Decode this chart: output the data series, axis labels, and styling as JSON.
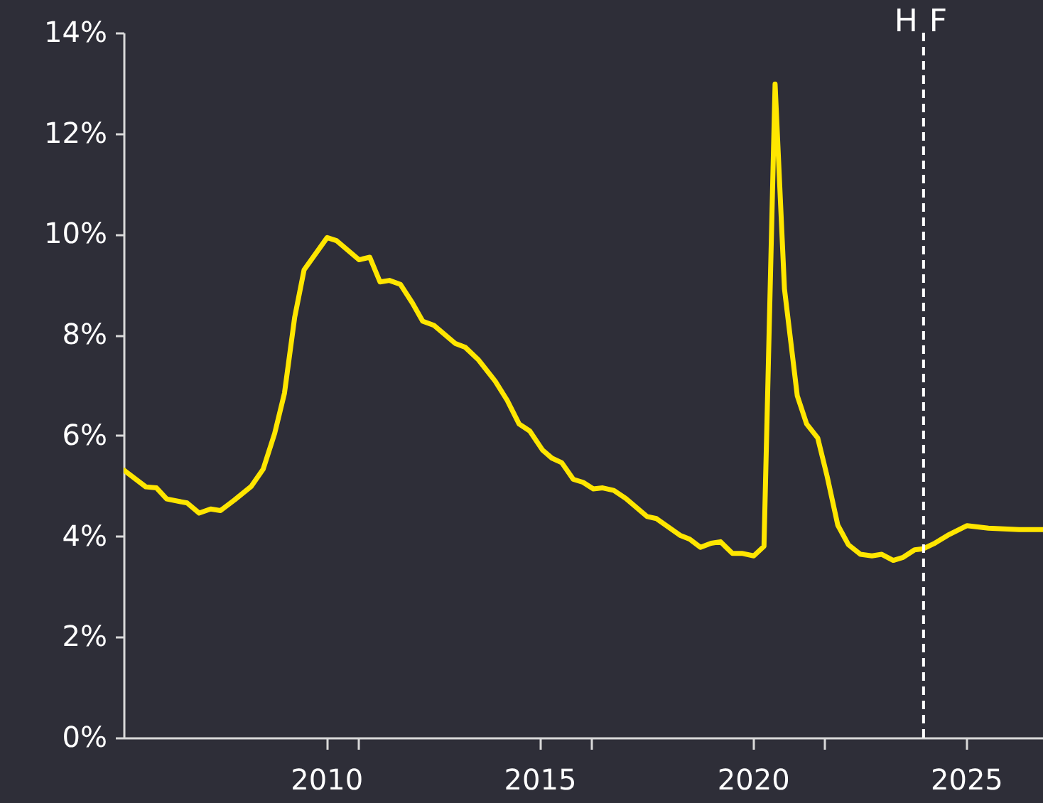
{
  "chart_data": {
    "type": "line",
    "x": [
      2005.26,
      2005.77,
      2006.02,
      2006.26,
      2006.74,
      2007.02,
      2007.29,
      2007.52,
      2007.85,
      2008.24,
      2008.52,
      2008.79,
      2009.02,
      2009.26,
      2009.48,
      2010.02,
      2010.24,
      2010.77,
      2011.02,
      2011.26,
      2011.48,
      2011.74,
      2012.02,
      2012.26,
      2012.52,
      2013.02,
      2013.26,
      2013.57,
      2013.96,
      2014.24,
      2014.52,
      2014.77,
      2015.07,
      2015.29,
      2015.52,
      2015.79,
      2016.02,
      2016.26,
      2016.48,
      2016.74,
      2017.02,
      2017.52,
      2017.74,
      2018.29,
      2018.52,
      2018.77,
      2019.02,
      2019.24,
      2019.52,
      2019.74,
      2020.02,
      2020.26,
      2020.52,
      2020.74,
      2021.04,
      2021.26,
      2021.52,
      2021.74,
      2021.99,
      2022.24,
      2022.52,
      2022.79,
      2023.02,
      2023.29,
      2023.52,
      2023.79,
      2023.99,
      2024.24,
      2024.57,
      2025.02,
      2025.52,
      2026.24,
      2026.8
    ],
    "series": [
      {
        "color": "#ffe600",
        "values": [
          5.31,
          4.98,
          4.96,
          4.74,
          4.66,
          4.46,
          4.54,
          4.51,
          4.72,
          4.99,
          5.33,
          6.04,
          6.84,
          8.35,
          9.29,
          9.93,
          9.87,
          9.49,
          9.54,
          9.05,
          9.08,
          9.0,
          8.63,
          8.27,
          8.19,
          7.83,
          7.75,
          7.5,
          7.08,
          6.7,
          6.23,
          6.09,
          5.71,
          5.55,
          5.46,
          5.13,
          5.07,
          4.94,
          4.96,
          4.91,
          4.75,
          4.39,
          4.35,
          4.02,
          3.94,
          3.78,
          3.86,
          3.89,
          3.66,
          3.66,
          3.61,
          3.8,
          12.98,
          8.91,
          6.79,
          6.23,
          5.95,
          5.19,
          4.22,
          3.83,
          3.64,
          3.61,
          3.64,
          3.52,
          3.58,
          3.73,
          3.75,
          3.85,
          4.02,
          4.21,
          4.16,
          4.13,
          4.13
        ]
      }
    ],
    "xlim": [
      2005.25,
      2026.8
    ],
    "xticks": [
      2010,
      {
        "value": 2010.73,
        "label": null
      },
      2015,
      {
        "value": 2016.2,
        "label": null
      },
      2020,
      {
        "value": 2021.67,
        "label": null
      },
      2025
    ],
    "ylim": [
      0,
      14
    ],
    "yticks": [
      {
        "value": 0,
        "label": "0%"
      },
      {
        "value": 2,
        "label": "2%"
      },
      {
        "value": 4,
        "label": "4%"
      },
      {
        "value": 6,
        "label": "6%"
      },
      {
        "value": 8,
        "label": "8%"
      },
      {
        "value": 10,
        "label": "10%"
      },
      {
        "value": 12,
        "label": "12%"
      },
      {
        "value": 14,
        "label": "14%"
      }
    ],
    "ref_lines": [
      {
        "axis": "x",
        "value": 2024,
        "color": "#ffffff",
        "line_style": "dashed"
      }
    ],
    "annotations": [
      "H",
      "F"
    ],
    "grid": false
  }
}
